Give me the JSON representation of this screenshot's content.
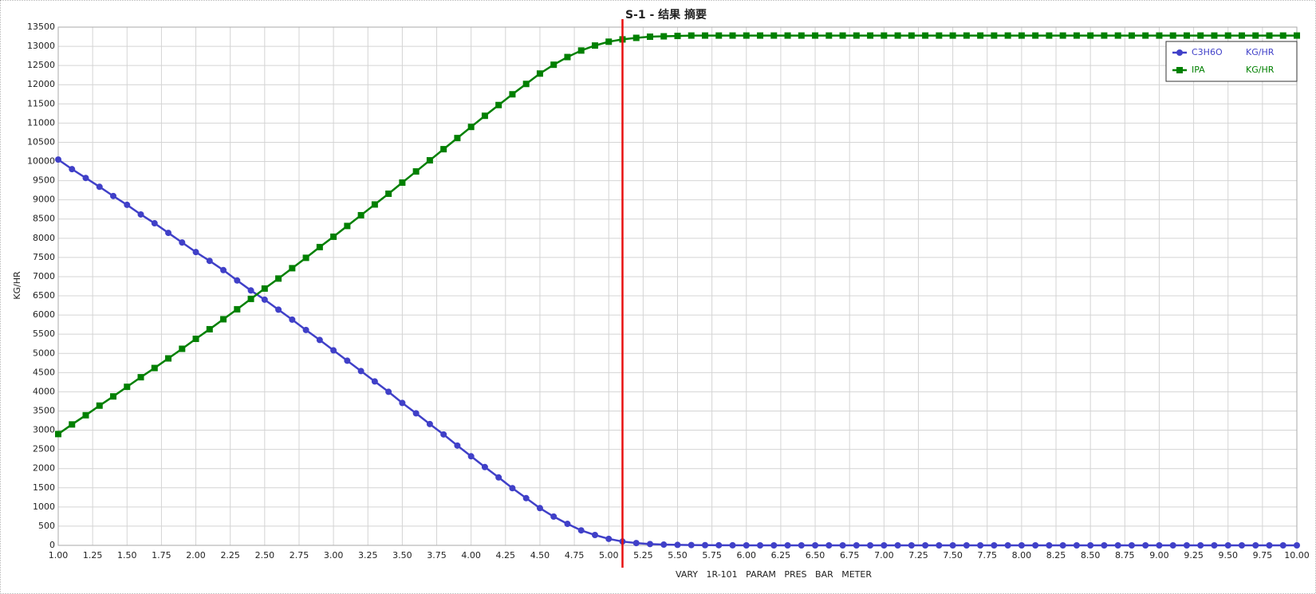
{
  "chart_data": {
    "type": "line",
    "title": "S-1 - 结果 摘要",
    "xlabel": "VARY   1R-101   PARAM   PRES   BAR   METER",
    "ylabel": "KG/HR",
    "x": [
      1,
      1.1,
      1.2,
      1.3,
      1.4,
      1.5,
      1.6,
      1.7,
      1.8,
      1.9,
      2,
      2.1,
      2.2,
      2.3,
      2.4,
      2.5,
      2.6,
      2.7,
      2.8,
      2.9,
      3,
      3.1,
      3.2,
      3.3,
      3.4,
      3.5,
      3.6,
      3.7,
      3.8,
      3.9,
      4,
      4.1,
      4.2,
      4.3,
      4.4,
      4.5,
      4.6,
      4.7,
      4.8,
      4.9,
      5,
      5.1,
      5.2,
      5.3,
      5.4,
      5.5,
      5.6,
      5.7,
      5.8,
      5.9,
      6,
      6.1,
      6.2,
      6.3,
      6.4,
      6.5,
      6.6,
      6.7,
      6.8,
      6.9,
      7,
      7.1,
      7.2,
      7.3,
      7.4,
      7.5,
      7.6,
      7.7,
      7.8,
      7.9,
      8,
      8.1,
      8.2,
      8.3,
      8.4,
      8.5,
      8.6,
      8.7,
      8.8,
      8.9,
      9,
      9.1,
      9.2,
      9.3,
      9.4,
      9.5,
      9.6,
      9.7,
      9.8,
      9.9,
      10
    ],
    "series": [
      {
        "name": "C3H6O",
        "units": "KG/HR",
        "color": "#4040c8",
        "marker": "circle",
        "values": [
          10050,
          9800,
          9570,
          9340,
          9100,
          8870,
          8620,
          8390,
          8140,
          7890,
          7640,
          7410,
          7170,
          6900,
          6640,
          6400,
          6140,
          5880,
          5610,
          5350,
          5080,
          4810,
          4540,
          4270,
          4000,
          3710,
          3440,
          3160,
          2890,
          2600,
          2320,
          2040,
          1770,
          1490,
          1230,
          970,
          750,
          560,
          390,
          270,
          170,
          100,
          60,
          35,
          20,
          12,
          8,
          5,
          3,
          2,
          0,
          0,
          0,
          0,
          0,
          0,
          0,
          0,
          0,
          0,
          0,
          0,
          0,
          0,
          0,
          0,
          0,
          0,
          0,
          0,
          0,
          0,
          0,
          0,
          0,
          0,
          0,
          0,
          0,
          0,
          0,
          0,
          0,
          0,
          0,
          0,
          0,
          0,
          0,
          0,
          0
        ]
      },
      {
        "name": "IPA",
        "units": "KG/HR",
        "color": "#008000",
        "marker": "square",
        "values": [
          2900,
          3150,
          3390,
          3640,
          3880,
          4130,
          4380,
          4620,
          4870,
          5120,
          5380,
          5630,
          5890,
          6150,
          6420,
          6690,
          6950,
          7220,
          7490,
          7770,
          8040,
          8320,
          8600,
          8880,
          9160,
          9450,
          9740,
          10030,
          10320,
          10610,
          10900,
          11190,
          11470,
          11750,
          12020,
          12290,
          12520,
          12720,
          12890,
          13020,
          13120,
          13180,
          13220,
          13250,
          13260,
          13270,
          13280,
          13280,
          13280,
          13280,
          13280,
          13280,
          13280,
          13280,
          13280,
          13280,
          13280,
          13280,
          13280,
          13280,
          13280,
          13280,
          13280,
          13280,
          13280,
          13280,
          13280,
          13280,
          13280,
          13280,
          13280,
          13280,
          13280,
          13280,
          13280,
          13280,
          13280,
          13280,
          13280,
          13280,
          13280,
          13280,
          13280,
          13280,
          13280,
          13280,
          13280,
          13280,
          13280,
          13280,
          13280
        ]
      }
    ],
    "cursor_x": 5.1,
    "cursor_color": "#e81010",
    "xlim": [
      1,
      10
    ],
    "xticks": [
      {
        "value": 1,
        "label": "1.00"
      },
      {
        "value": 1.25,
        "label": "1.25"
      },
      {
        "value": 1.5,
        "label": "1.50"
      },
      {
        "value": 1.75,
        "label": "1.75"
      },
      {
        "value": 2,
        "label": "2.00"
      },
      {
        "value": 2.25,
        "label": "2.25"
      },
      {
        "value": 2.5,
        "label": "2.50"
      },
      {
        "value": 2.75,
        "label": "2.75"
      },
      {
        "value": 3,
        "label": "3.00"
      },
      {
        "value": 3.25,
        "label": "3.25"
      },
      {
        "value": 3.5,
        "label": "3.50"
      },
      {
        "value": 3.75,
        "label": "3.75"
      },
      {
        "value": 4,
        "label": "4.00"
      },
      {
        "value": 4.25,
        "label": "4.25"
      },
      {
        "value": 4.5,
        "label": "4.50"
      },
      {
        "value": 4.75,
        "label": "4.75"
      },
      {
        "value": 5,
        "label": "5.00"
      },
      {
        "value": 5.25,
        "label": "5.25"
      },
      {
        "value": 5.5,
        "label": "5.50"
      },
      {
        "value": 5.75,
        "label": "5.75"
      },
      {
        "value": 6,
        "label": "6.00"
      },
      {
        "value": 6.25,
        "label": "6.25"
      },
      {
        "value": 6.5,
        "label": "6.50"
      },
      {
        "value": 6.75,
        "label": "6.75"
      },
      {
        "value": 7,
        "label": "7.00"
      },
      {
        "value": 7.25,
        "label": "7.25"
      },
      {
        "value": 7.5,
        "label": "7.50"
      },
      {
        "value": 7.75,
        "label": "7.75"
      },
      {
        "value": 8,
        "label": "8.00"
      },
      {
        "value": 8.25,
        "label": "8.25"
      },
      {
        "value": 8.5,
        "label": "8.50"
      },
      {
        "value": 8.75,
        "label": "8.75"
      },
      {
        "value": 9,
        "label": "9.00"
      },
      {
        "value": 9.25,
        "label": "9.25"
      },
      {
        "value": 9.5,
        "label": "9.50"
      },
      {
        "value": 9.75,
        "label": "9.75"
      },
      {
        "value": 10,
        "label": "10.00"
      }
    ],
    "ylim": [
      0,
      13500
    ],
    "yticks": [
      0,
      500,
      1000,
      1500,
      2000,
      2500,
      3000,
      3500,
      4000,
      4500,
      5000,
      5500,
      6000,
      6500,
      7000,
      7500,
      8000,
      8500,
      9000,
      9500,
      10000,
      10500,
      11000,
      11500,
      12000,
      12500,
      13000,
      13500
    ],
    "grid": true,
    "legend": "top-right"
  }
}
